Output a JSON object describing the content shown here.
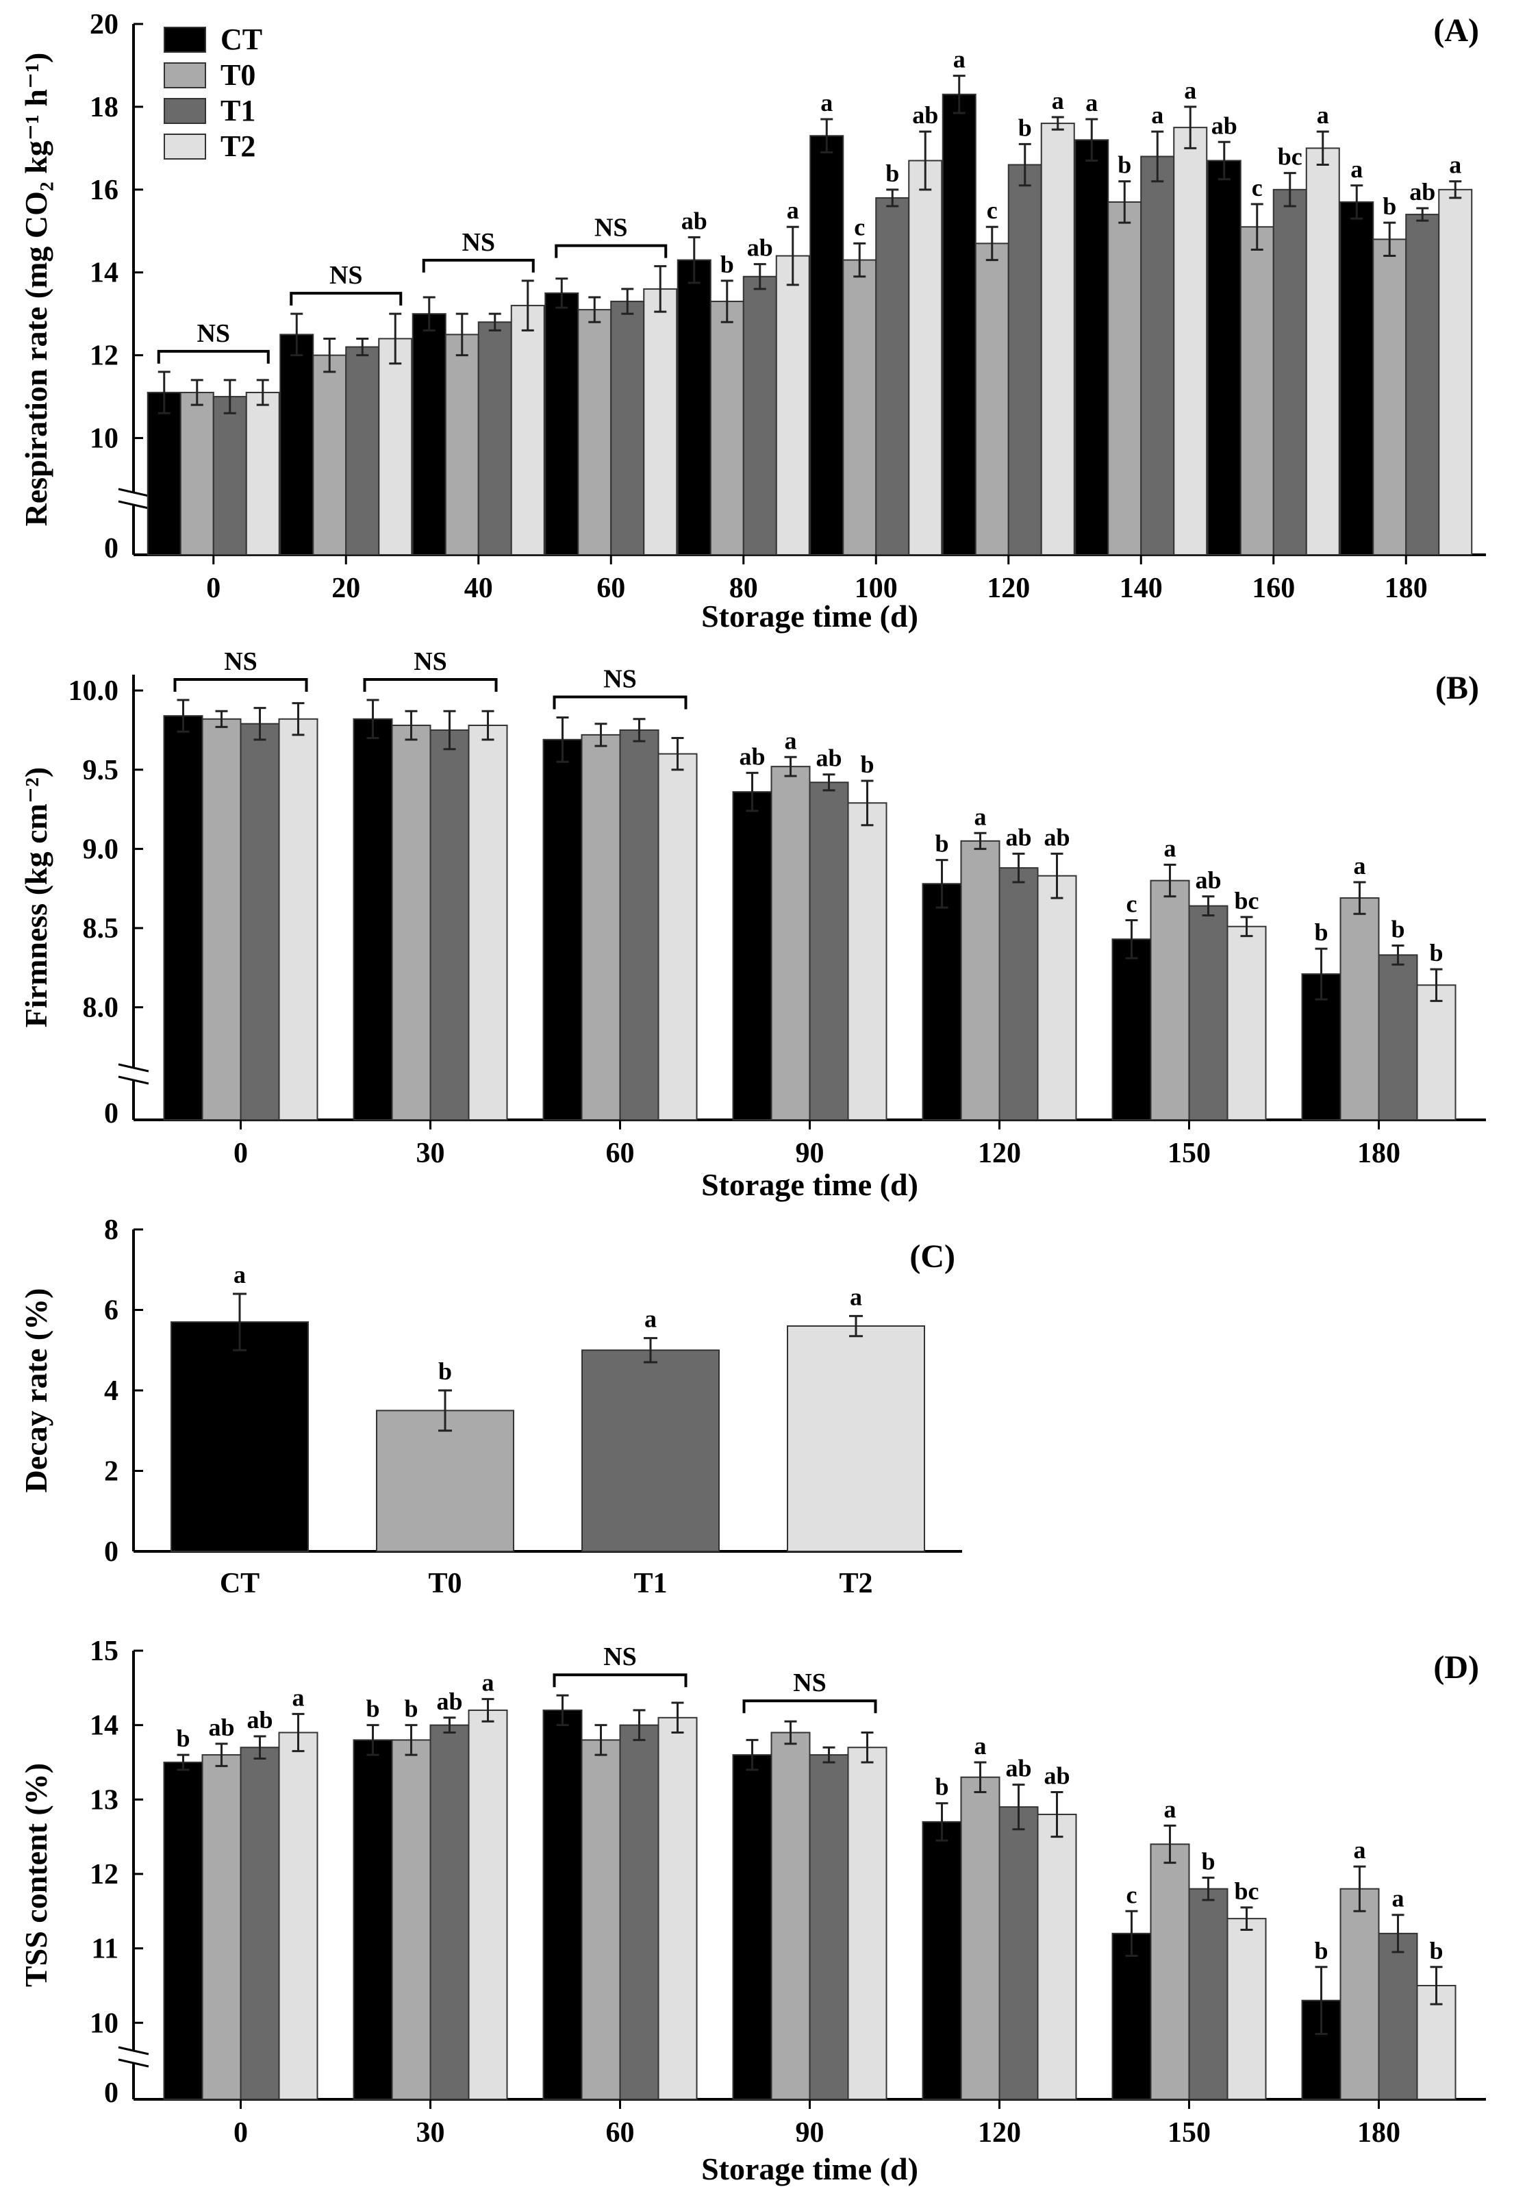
{
  "legend": [
    "CT",
    "T0",
    "T1",
    "T2"
  ],
  "colors": {
    "CT": "#000000",
    "T0": "#aaaaaa",
    "T1": "#6a6a6a",
    "T2": "#e0e0e0"
  },
  "chart_data": [
    {
      "id": "A",
      "panel_label": "(A)",
      "type": "bar",
      "xlabel": "Storage time (d)",
      "ylabel": "Respiration rate (mg CO₂ kg⁻¹ h⁻¹)",
      "ylim": [
        9,
        20
      ],
      "yticks": [
        10,
        12,
        14,
        16,
        18,
        20
      ],
      "axis_break_zero": "0",
      "categories": [
        "0",
        "20",
        "40",
        "60",
        "80",
        "100",
        "120",
        "140",
        "160",
        "180"
      ],
      "series": [
        {
          "name": "CT",
          "values": [
            11.1,
            12.5,
            13.0,
            13.5,
            14.3,
            17.3,
            18.3,
            17.2,
            16.7,
            15.7
          ],
          "errors": [
            0.5,
            0.5,
            0.4,
            0.35,
            0.55,
            0.4,
            0.45,
            0.5,
            0.45,
            0.4
          ]
        },
        {
          "name": "T0",
          "values": [
            11.1,
            12.0,
            12.5,
            13.1,
            13.3,
            14.3,
            14.7,
            15.7,
            15.1,
            14.8
          ],
          "errors": [
            0.3,
            0.4,
            0.5,
            0.3,
            0.5,
            0.4,
            0.4,
            0.5,
            0.55,
            0.4
          ]
        },
        {
          "name": "T1",
          "values": [
            11.0,
            12.2,
            12.8,
            13.3,
            13.9,
            15.8,
            16.6,
            16.8,
            16.0,
            15.4
          ],
          "errors": [
            0.4,
            0.2,
            0.2,
            0.3,
            0.3,
            0.2,
            0.5,
            0.6,
            0.4,
            0.15
          ]
        },
        {
          "name": "T2",
          "values": [
            11.1,
            12.4,
            13.2,
            13.6,
            14.4,
            16.7,
            17.6,
            17.5,
            17.0,
            16.0
          ],
          "errors": [
            0.3,
            0.6,
            0.6,
            0.55,
            0.7,
            0.7,
            0.15,
            0.5,
            0.4,
            0.2
          ]
        }
      ],
      "significance": [
        null,
        null,
        null,
        null,
        [
          "ab",
          "b",
          "ab",
          "a"
        ],
        [
          "a",
          "c",
          "b",
          "ab"
        ],
        [
          "a",
          "c",
          "b",
          "a"
        ],
        [
          "a",
          "b",
          "a",
          "a"
        ],
        [
          "ab",
          "c",
          "bc",
          "a"
        ],
        [
          "a",
          "b",
          "ab",
          "a"
        ]
      ],
      "ns_groups": [
        0,
        1,
        2,
        3
      ],
      "ns_label": "NS"
    },
    {
      "id": "B",
      "panel_label": "(B)",
      "type": "bar",
      "xlabel": "Storage time (d)",
      "ylabel": "Firmness (kg cm⁻²)",
      "ylim": [
        7.7,
        10.1
      ],
      "yticks": [
        8.0,
        8.5,
        9.0,
        9.5,
        10.0
      ],
      "axis_break_zero": "0",
      "categories": [
        "0",
        "30",
        "60",
        "90",
        "120",
        "150",
        "180"
      ],
      "series": [
        {
          "name": "CT",
          "values": [
            9.84,
            9.82,
            9.69,
            9.36,
            8.78,
            8.43,
            8.21
          ],
          "errors": [
            0.1,
            0.12,
            0.14,
            0.12,
            0.15,
            0.12,
            0.16
          ]
        },
        {
          "name": "T0",
          "values": [
            9.82,
            9.78,
            9.72,
            9.52,
            9.05,
            8.8,
            8.69
          ],
          "errors": [
            0.05,
            0.09,
            0.07,
            0.06,
            0.05,
            0.1,
            0.1
          ]
        },
        {
          "name": "T1",
          "values": [
            9.79,
            9.75,
            9.75,
            9.42,
            8.88,
            8.64,
            8.33
          ],
          "errors": [
            0.1,
            0.12,
            0.07,
            0.05,
            0.09,
            0.06,
            0.06
          ]
        },
        {
          "name": "T2",
          "values": [
            9.82,
            9.78,
            9.6,
            9.29,
            8.83,
            8.51,
            8.14
          ],
          "errors": [
            0.1,
            0.09,
            0.1,
            0.14,
            0.14,
            0.06,
            0.1
          ]
        }
      ],
      "significance": [
        null,
        null,
        null,
        [
          "ab",
          "a",
          "ab",
          "b"
        ],
        [
          "b",
          "a",
          "ab",
          "ab"
        ],
        [
          "c",
          "a",
          "ab",
          "bc"
        ],
        [
          "b",
          "a",
          "b",
          "b"
        ]
      ],
      "ns_groups": [
        0,
        1,
        2
      ],
      "ns_label": "NS"
    },
    {
      "id": "C",
      "panel_label": "(C)",
      "type": "bar",
      "xlabel": "",
      "ylabel": "Decay rate (%)",
      "ylim": [
        0,
        8
      ],
      "yticks": [
        0,
        2,
        4,
        6,
        8
      ],
      "categories": [
        "CT",
        "T0",
        "T1",
        "T2"
      ],
      "values": [
        5.7,
        3.5,
        5.0,
        5.6
      ],
      "errors": [
        0.7,
        0.5,
        0.3,
        0.25
      ],
      "significance": [
        "a",
        "b",
        "a",
        "a"
      ]
    },
    {
      "id": "D",
      "panel_label": "(D)",
      "type": "bar",
      "xlabel": "Storage time (d)",
      "ylabel": "TSS content (%)",
      "ylim": [
        9.8,
        15
      ],
      "yticks": [
        10,
        11,
        12,
        13,
        14,
        15
      ],
      "axis_break_zero": "0",
      "categories": [
        "0",
        "30",
        "60",
        "90",
        "120",
        "150",
        "180"
      ],
      "series": [
        {
          "name": "CT",
          "values": [
            13.5,
            13.8,
            14.2,
            13.6,
            12.7,
            11.2,
            10.3
          ],
          "errors": [
            0.1,
            0.2,
            0.2,
            0.2,
            0.25,
            0.3,
            0.45
          ]
        },
        {
          "name": "T0",
          "values": [
            13.6,
            13.8,
            13.8,
            13.9,
            13.3,
            12.4,
            11.8
          ],
          "errors": [
            0.15,
            0.2,
            0.2,
            0.15,
            0.2,
            0.25,
            0.3
          ]
        },
        {
          "name": "T1",
          "values": [
            13.7,
            14.0,
            14.0,
            13.6,
            12.9,
            11.8,
            11.2
          ],
          "errors": [
            0.15,
            0.1,
            0.2,
            0.1,
            0.3,
            0.15,
            0.25
          ]
        },
        {
          "name": "T2",
          "values": [
            13.9,
            14.2,
            14.1,
            13.7,
            12.8,
            11.4,
            10.5
          ],
          "errors": [
            0.25,
            0.15,
            0.2,
            0.2,
            0.3,
            0.15,
            0.25
          ]
        }
      ],
      "significance": [
        [
          "b",
          "ab",
          "ab",
          "a"
        ],
        [
          "b",
          "b",
          "ab",
          "a"
        ],
        null,
        null,
        [
          "b",
          "a",
          "ab",
          "ab"
        ],
        [
          "c",
          "a",
          "b",
          "bc"
        ],
        [
          "b",
          "a",
          "a",
          "b"
        ]
      ],
      "ns_groups": [
        2,
        3
      ],
      "ns_label": "NS"
    }
  ]
}
